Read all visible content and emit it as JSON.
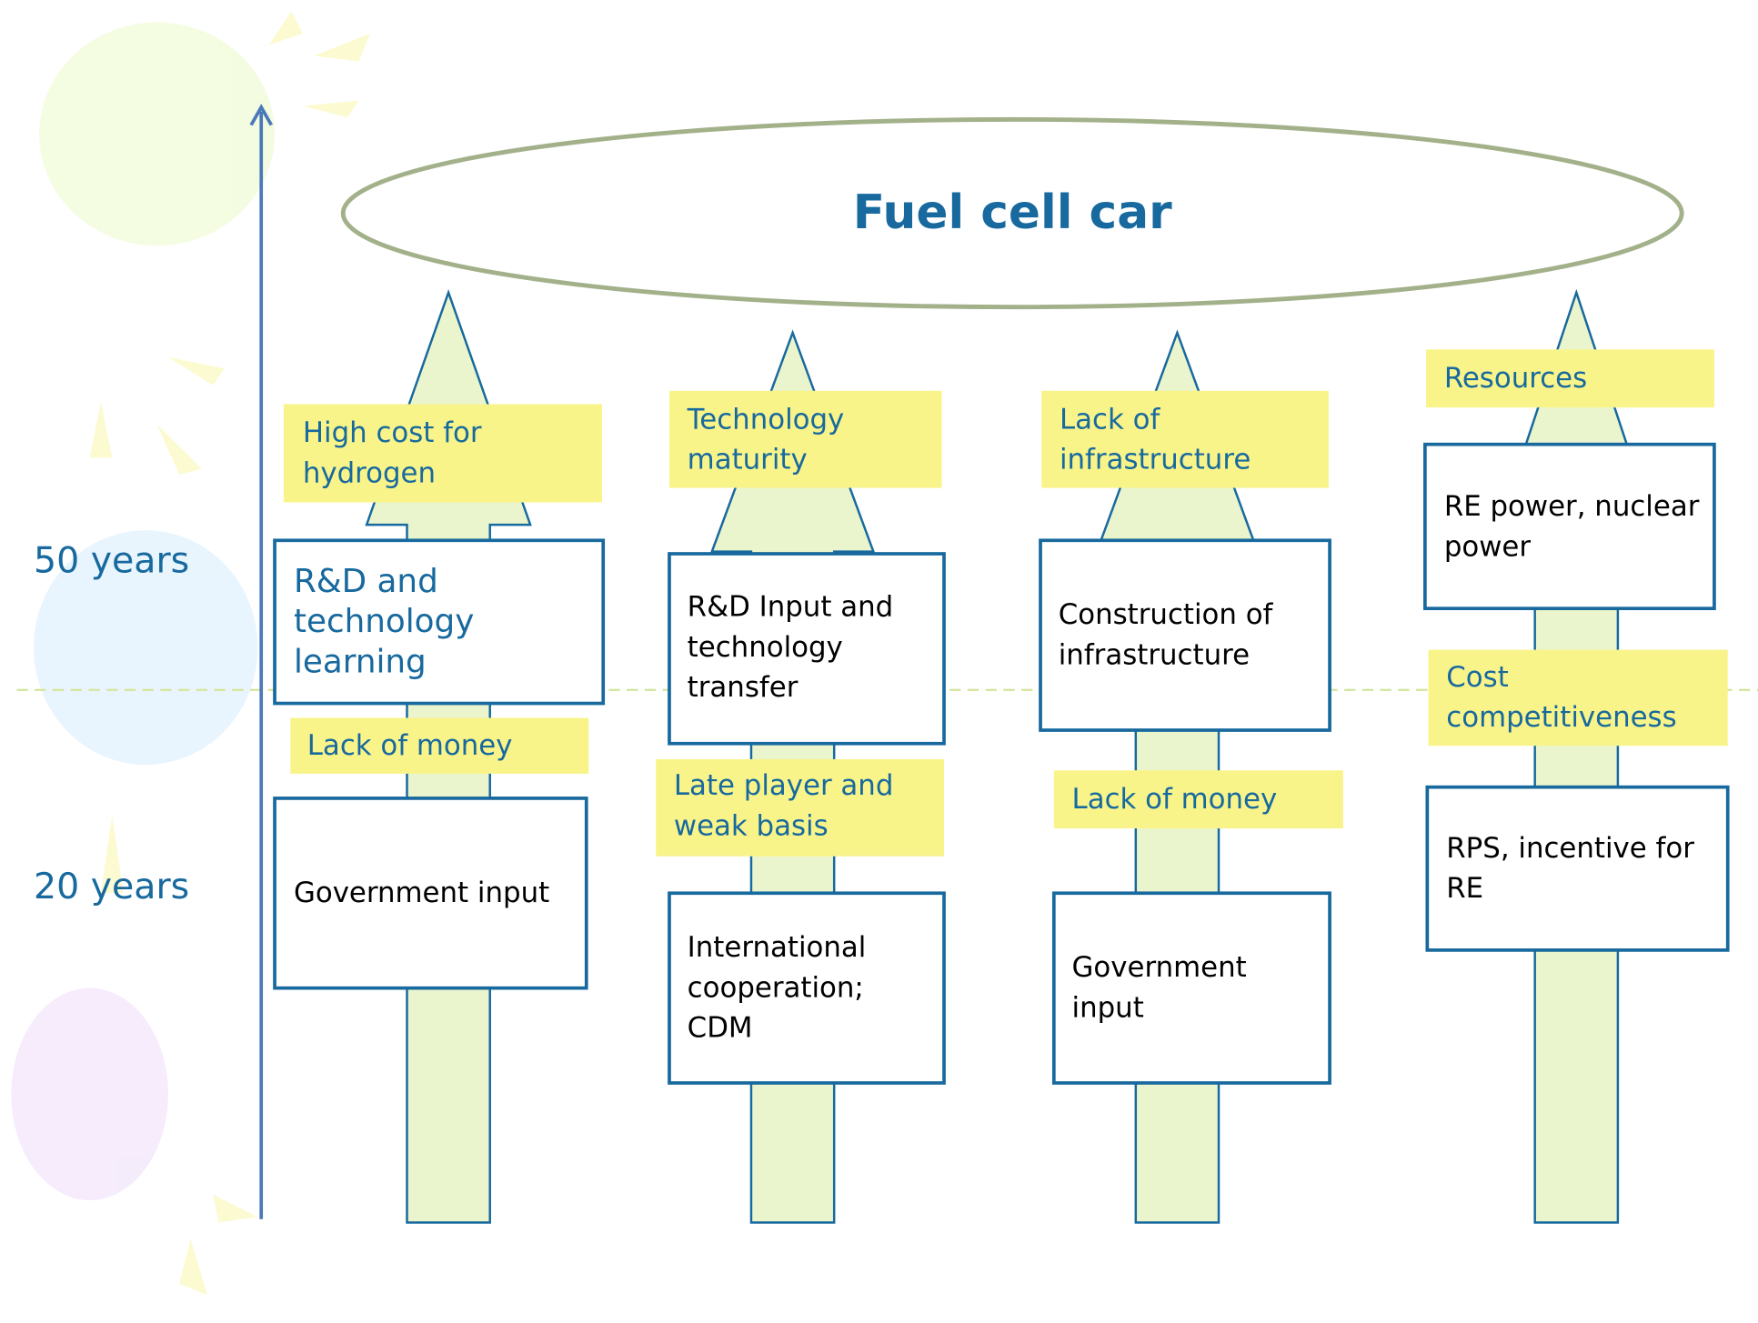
{
  "title": "Fuel cell car",
  "timeline": {
    "labels": [
      "50 years",
      "20 years"
    ]
  },
  "columns": [
    {
      "upper_barrier": {
        "lines": [
          "High cost for",
          "hydrogen"
        ]
      },
      "upper_measure": {
        "lines": [
          "R&D and",
          "technology",
          "learning"
        ]
      },
      "lower_barrier": {
        "lines": [
          "Lack of money"
        ]
      },
      "lower_measure": {
        "lines": [
          "Government input"
        ]
      }
    },
    {
      "upper_barrier": {
        "lines": [
          "Technology",
          "maturity"
        ]
      },
      "upper_measure": {
        "lines": [
          "R&D Input and",
          "technology",
          "transfer"
        ]
      },
      "lower_barrier": {
        "lines": [
          "Late player and",
          "weak basis"
        ]
      },
      "lower_measure": {
        "lines": [
          "International",
          "cooperation;",
          "CDM"
        ]
      }
    },
    {
      "upper_barrier": {
        "lines": [
          "Lack of",
          "infrastructure"
        ]
      },
      "upper_measure": {
        "lines": [
          "Construction of",
          "infrastructure"
        ]
      },
      "lower_barrier": {
        "lines": [
          "Lack of money"
        ]
      },
      "lower_measure": {
        "lines": [
          "Government",
          "input"
        ]
      }
    },
    {
      "upper_barrier": {
        "lines": [
          "Resources"
        ]
      },
      "upper_measure": {
        "lines": [
          "RE power, nuclear",
          "power"
        ]
      },
      "lower_barrier": {
        "lines": [
          "Cost",
          "competitiveness"
        ]
      },
      "lower_measure": {
        "lines": [
          "RPS, incentive for",
          "RE"
        ]
      }
    }
  ]
}
